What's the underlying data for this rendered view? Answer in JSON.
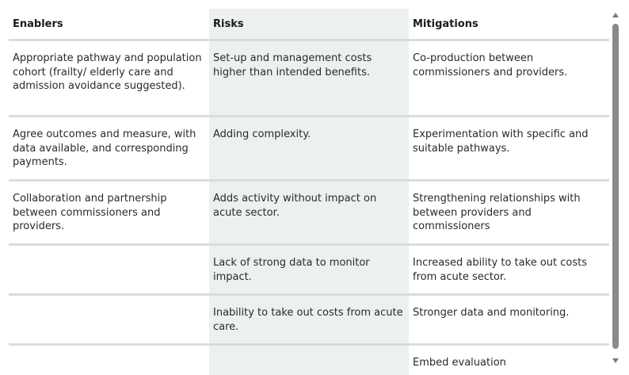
{
  "table": {
    "headers": [
      "Enablers",
      "Risks",
      "Mitigations"
    ],
    "rows": [
      {
        "enabler": "Appropriate pathway and population cohort (frailty/ elderly care and admission avoidance suggested).",
        "risk": "Set-up and management costs higher than intended benefits.",
        "mitigation": "Co-production between commissioners and providers."
      },
      {
        "enabler": "Agree outcomes and measure, with data available, and corresponding payments.",
        "risk": "Adding complexity.",
        "mitigation": "Experimentation with specific and suitable pathways."
      },
      {
        "enabler": "Collaboration and partnership between commissioners and providers.",
        "risk": "Adds activity without impact on acute sector.",
        "mitigation": "Strengthening relationships with between providers and commissioners"
      },
      {
        "enabler": "",
        "risk": "Lack of strong data to monitor impact.",
        "mitigation": "Increased ability to take out costs from acute sector."
      },
      {
        "enabler": "",
        "risk": "Inability to take out costs from acute care.",
        "mitigation": "Stronger data and monitoring."
      },
      {
        "enabler": "",
        "risk": "",
        "mitigation": "Embed evaluation"
      }
    ]
  },
  "colors": {
    "risks_column_background": "#ecf1f0",
    "row_divider": "#dcdcdc",
    "scrollbar_thumb": "#8a8a8a"
  }
}
